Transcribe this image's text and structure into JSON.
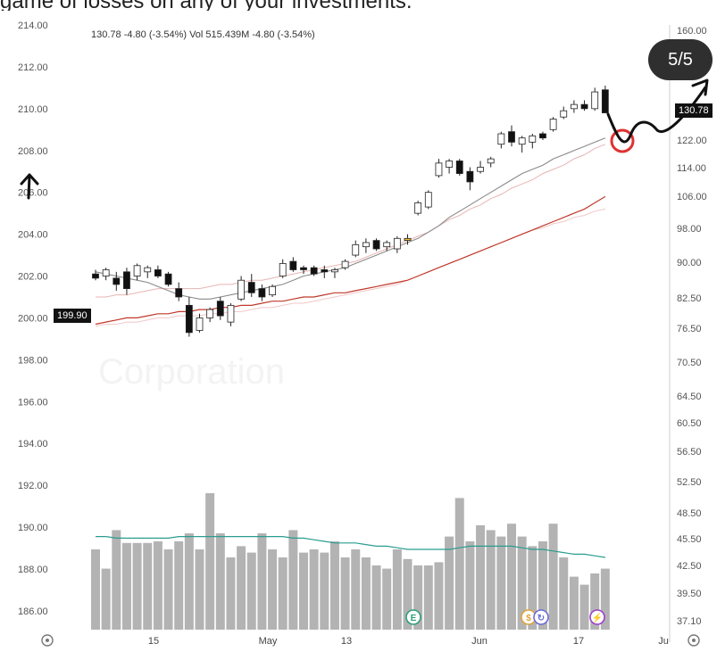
{
  "caption": "game of losses on any of your investments.",
  "slide_counter": "5/5",
  "header_quote": "130.78  -4.80 (-3.54%)  Vol 515.439M  -4.80 (-3.54%)",
  "left_price_tag": "199.90",
  "right_price_tag": "130.78",
  "watermark_name": "Corporation",
  "settings_icon": "gear-icon",
  "event_icons": [
    {
      "name": "earnings-icon",
      "label": "E",
      "color": "#2e9e78"
    },
    {
      "name": "dividend-icon",
      "label": "$",
      "color": "#e0a33a"
    },
    {
      "name": "split-icon",
      "label": "↻",
      "color": "#6b6bd6"
    },
    {
      "name": "lightning-icon",
      "label": "⚡",
      "color": "#9b3ed1"
    }
  ],
  "colors": {
    "sma_gray": "#8a8a8a",
    "sma_red": "#c0392b",
    "sma_pink": "#e8b4b4",
    "vol_avg": "#2a9d8f",
    "annotation_circle": "#e03030"
  },
  "chart_data": {
    "type": "candlestick",
    "left_axis": {
      "ticks": [
        214,
        212,
        210,
        208,
        206,
        204,
        202,
        200,
        198,
        196,
        194,
        192,
        190,
        188,
        186
      ],
      "tick_labels": [
        "214.00",
        "212.00",
        "210.00",
        "208.00",
        "206.00",
        "204.00",
        "202.00",
        "200.00",
        "198.00",
        "196.00",
        "194.00",
        "192.00",
        "190.00",
        "188.00",
        "186.00"
      ]
    },
    "right_axis": {
      "tick_labels": [
        "160.00",
        "130.78",
        "122.00",
        "114.00",
        "106.00",
        "98.00",
        "90.00",
        "82.50",
        "76.50",
        "70.50",
        "64.50",
        "60.50",
        "56.50",
        "52.50",
        "48.50",
        "45.50",
        "42.50",
        "39.50",
        "37.10"
      ]
    },
    "x_labels": [
      "15",
      "May",
      "13",
      "Jun",
      "17",
      "Ju"
    ],
    "candles": [
      [
        202.1,
        202.3,
        201.8,
        201.9
      ],
      [
        202.0,
        202.4,
        201.8,
        202.3
      ],
      [
        201.9,
        202.2,
        201.3,
        201.6
      ],
      [
        202.2,
        202.4,
        201.1,
        201.4
      ],
      [
        202.0,
        202.6,
        201.8,
        202.5
      ],
      [
        202.2,
        202.5,
        201.9,
        202.4
      ],
      [
        202.3,
        202.5,
        201.9,
        202.0
      ],
      [
        202.1,
        202.2,
        201.5,
        201.6
      ],
      [
        201.4,
        201.7,
        200.8,
        201.0
      ],
      [
        200.6,
        201.0,
        199.1,
        199.3
      ],
      [
        199.4,
        200.2,
        199.3,
        200.0
      ],
      [
        200.0,
        200.5,
        199.8,
        200.4
      ],
      [
        200.8,
        201.0,
        199.9,
        200.1
      ],
      [
        199.8,
        200.7,
        199.6,
        200.6
      ],
      [
        200.9,
        202.0,
        200.8,
        201.8
      ],
      [
        201.7,
        202.1,
        201.0,
        201.2
      ],
      [
        201.4,
        201.6,
        200.8,
        201.0
      ],
      [
        201.1,
        201.6,
        201.0,
        201.5
      ],
      [
        202.0,
        202.8,
        201.9,
        202.6
      ],
      [
        202.7,
        202.9,
        202.2,
        202.3
      ],
      [
        202.4,
        202.5,
        202.1,
        202.3
      ],
      [
        202.4,
        202.5,
        202.0,
        202.1
      ],
      [
        202.3,
        202.5,
        201.9,
        202.2
      ],
      [
        202.2,
        202.4,
        201.9,
        202.3
      ],
      [
        202.4,
        202.8,
        202.3,
        202.7
      ],
      [
        203.0,
        203.7,
        202.9,
        203.5
      ],
      [
        203.4,
        203.8,
        203.1,
        203.6
      ],
      [
        203.7,
        203.8,
        203.2,
        203.3
      ],
      [
        203.4,
        203.7,
        203.2,
        203.6
      ],
      [
        203.3,
        203.9,
        203.1,
        203.8
      ],
      [
        203.8,
        204.0,
        203.5,
        203.7
      ],
      [
        205.0,
        205.6,
        204.9,
        205.5
      ],
      [
        205.3,
        206.1,
        205.2,
        206.0
      ],
      [
        206.8,
        207.6,
        206.7,
        207.4
      ],
      [
        207.2,
        207.6,
        206.9,
        207.5
      ],
      [
        207.5,
        207.6,
        206.8,
        206.9
      ],
      [
        207.0,
        207.2,
        206.1,
        206.5
      ],
      [
        207.0,
        207.5,
        206.9,
        207.2
      ],
      [
        207.4,
        207.7,
        207.2,
        207.6
      ],
      [
        208.3,
        208.9,
        208.1,
        208.8
      ],
      [
        208.9,
        209.2,
        208.2,
        208.4
      ],
      [
        208.3,
        208.7,
        207.9,
        208.6
      ],
      [
        208.4,
        208.8,
        208.1,
        208.7
      ],
      [
        208.8,
        208.9,
        208.5,
        208.6
      ],
      [
        209.0,
        209.6,
        208.9,
        209.5
      ],
      [
        209.6,
        210.1,
        209.5,
        209.9
      ],
      [
        210.0,
        210.4,
        209.8,
        210.2
      ],
      [
        210.2,
        210.4,
        209.9,
        210.0
      ],
      [
        210.0,
        211.0,
        209.9,
        210.8
      ],
      [
        210.9,
        211.1,
        209.8,
        209.8
      ]
    ],
    "highlight_candle_index": 30,
    "sma_gray": [
      202.2,
      202.1,
      202.0,
      201.9,
      201.8,
      201.7,
      201.5,
      201.3,
      201.1,
      201.0,
      200.9,
      200.9,
      201.0,
      201.1,
      201.2,
      201.3,
      201.4,
      201.5,
      201.6,
      201.8,
      202.0,
      202.1,
      202.2,
      202.3,
      202.4,
      202.6,
      202.8,
      203.0,
      203.2,
      203.4,
      203.6,
      203.8,
      204.1,
      204.4,
      204.8,
      205.1,
      205.4,
      205.7,
      206.0,
      206.3,
      206.6,
      206.9,
      207.1,
      207.3,
      207.6,
      207.8,
      208.0,
      208.2,
      208.4,
      208.6
    ],
    "sma_pink": [
      201.0,
      201.0,
      201.1,
      201.1,
      201.2,
      201.3,
      201.4,
      201.4,
      201.4,
      201.4,
      201.4,
      201.5,
      201.6,
      201.6,
      201.7,
      201.8,
      201.8,
      201.9,
      202.0,
      202.1,
      202.2,
      202.3,
      202.4,
      202.5,
      202.6,
      202.7,
      202.9,
      203.1,
      203.3,
      203.5,
      203.7,
      203.9,
      204.1,
      204.4,
      204.7,
      204.9,
      205.2,
      205.4,
      205.7,
      205.9,
      206.2,
      206.4,
      206.6,
      206.9,
      207.1,
      207.3,
      207.6,
      207.8,
      208.1,
      208.3
    ],
    "sma_red": [
      199.7,
      199.8,
      199.9,
      200.0,
      200.0,
      200.1,
      200.2,
      200.2,
      200.3,
      200.3,
      200.4,
      200.4,
      200.5,
      200.5,
      200.6,
      200.6,
      200.7,
      200.8,
      200.8,
      200.9,
      201.0,
      201.0,
      201.1,
      201.2,
      201.2,
      201.3,
      201.4,
      201.5,
      201.6,
      201.7,
      201.8,
      202.0,
      202.2,
      202.4,
      202.6,
      202.8,
      203.0,
      203.2,
      203.4,
      203.6,
      203.8,
      204.0,
      204.2,
      204.4,
      204.6,
      204.8,
      205.0,
      205.2,
      205.5,
      205.8
    ],
    "sma_light": [
      199.6,
      199.7,
      199.7,
      199.8,
      199.8,
      199.9,
      200.0,
      200.0,
      200.1,
      200.1,
      200.1,
      200.2,
      200.2,
      200.3,
      200.3,
      200.4,
      200.5,
      200.5,
      200.6,
      200.7,
      200.7,
      200.8,
      200.9,
      201.0,
      201.1,
      201.2,
      201.3,
      201.4,
      201.5,
      201.6,
      201.8,
      202.0,
      202.2,
      202.4,
      202.6,
      202.8,
      203.0,
      203.2,
      203.4,
      203.6,
      203.8,
      204.0,
      204.2,
      204.3,
      204.5,
      204.6,
      204.8,
      204.9,
      205.1,
      205.2
    ],
    "volume": [
      0.5,
      0.38,
      0.62,
      0.54,
      0.54,
      0.54,
      0.55,
      0.5,
      0.55,
      0.6,
      0.5,
      0.85,
      0.6,
      0.45,
      0.52,
      0.48,
      0.6,
      0.5,
      0.45,
      0.62,
      0.48,
      0.5,
      0.48,
      0.55,
      0.45,
      0.5,
      0.45,
      0.4,
      0.38,
      0.5,
      0.44,
      0.4,
      0.4,
      0.42,
      0.58,
      0.82,
      0.55,
      0.65,
      0.62,
      0.58,
      0.66,
      0.58,
      0.52,
      0.55,
      0.66,
      0.45,
      0.33,
      0.28,
      0.35,
      0.38
    ],
    "volume_avg": [
      0.58,
      0.58,
      0.57,
      0.57,
      0.57,
      0.57,
      0.57,
      0.57,
      0.58,
      0.58,
      0.58,
      0.58,
      0.58,
      0.58,
      0.58,
      0.58,
      0.58,
      0.58,
      0.58,
      0.57,
      0.57,
      0.56,
      0.55,
      0.54,
      0.54,
      0.54,
      0.53,
      0.52,
      0.52,
      0.51,
      0.5,
      0.5,
      0.5,
      0.5,
      0.5,
      0.51,
      0.52,
      0.52,
      0.52,
      0.52,
      0.52,
      0.51,
      0.5,
      0.5,
      0.49,
      0.48,
      0.47,
      0.47,
      0.46,
      0.45
    ]
  }
}
